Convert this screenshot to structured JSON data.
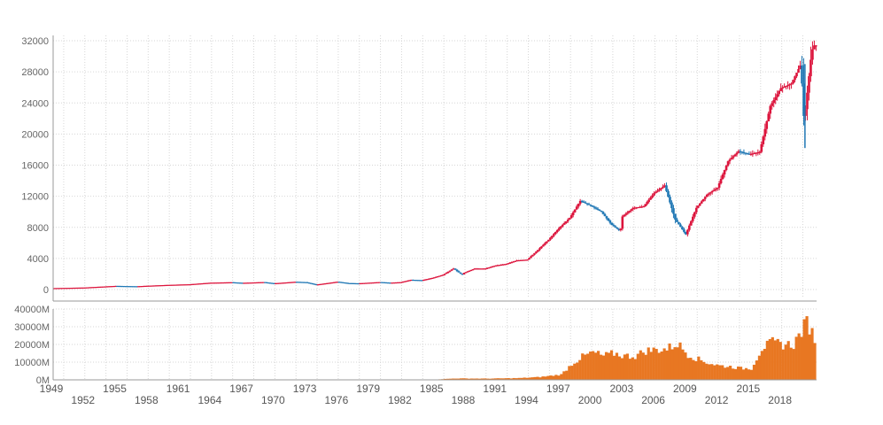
{
  "chart_data": [
    {
      "type": "candlestick",
      "panel": "price",
      "x_unit": "year",
      "y_ticks": [
        "0",
        "4000",
        "8000",
        "12000",
        "16000",
        "20000",
        "24000",
        "28000",
        "32000"
      ],
      "ylim": [
        0,
        32000
      ],
      "grid": true,
      "colors": {
        "up": "#dc143c",
        "down": "#1f77b4"
      },
      "points": [
        [
          1949,
          180
        ],
        [
          1952,
          260
        ],
        [
          1955,
          470
        ],
        [
          1957,
          420
        ],
        [
          1958,
          490
        ],
        [
          1960,
          600
        ],
        [
          1962,
          680
        ],
        [
          1964,
          880
        ],
        [
          1966,
          940
        ],
        [
          1967,
          860
        ],
        [
          1969,
          960
        ],
        [
          1970,
          800
        ],
        [
          1971,
          900
        ],
        [
          1972,
          1000
        ],
        [
          1973,
          950
        ],
        [
          1974,
          640
        ],
        [
          1975,
          820
        ],
        [
          1976,
          1010
        ],
        [
          1977,
          830
        ],
        [
          1978,
          800
        ],
        [
          1980,
          960
        ],
        [
          1981,
          880
        ],
        [
          1982,
          950
        ],
        [
          1983,
          1260
        ],
        [
          1984,
          1200
        ],
        [
          1985,
          1500
        ],
        [
          1986,
          1900
        ],
        [
          1987,
          2700
        ],
        [
          1987.8,
          1900
        ],
        [
          1988,
          2150
        ],
        [
          1989,
          2700
        ],
        [
          1990,
          2700
        ],
        [
          1991,
          3100
        ],
        [
          1992,
          3300
        ],
        [
          1993,
          3750
        ],
        [
          1994,
          3850
        ],
        [
          1995,
          5100
        ],
        [
          1996,
          6400
        ],
        [
          1997,
          7900
        ],
        [
          1998,
          9200
        ],
        [
          1999,
          11400
        ],
        [
          2000,
          10800
        ],
        [
          2001,
          10000
        ],
        [
          2002,
          8300
        ],
        [
          2002.8,
          7500
        ],
        [
          2003,
          9400
        ],
        [
          2004,
          10500
        ],
        [
          2005,
          10700
        ],
        [
          2006,
          12400
        ],
        [
          2007,
          13400
        ],
        [
          2008,
          9000
        ],
        [
          2009,
          7100
        ],
        [
          2010,
          10500
        ],
        [
          2011,
          12200
        ],
        [
          2012,
          13100
        ],
        [
          2013,
          16500
        ],
        [
          2014,
          17800
        ],
        [
          2015,
          17400
        ],
        [
          2016,
          17700
        ],
        [
          2017,
          23600
        ],
        [
          2018,
          25900
        ],
        [
          2019,
          26500
        ],
        [
          2019.9,
          29000
        ],
        [
          2020.2,
          21500
        ],
        [
          2020.9,
          30400
        ],
        [
          2021.1,
          31400
        ]
      ]
    },
    {
      "type": "bar",
      "panel": "volume",
      "x_unit": "year",
      "y_ticks": [
        "0M",
        "10000M",
        "20000M",
        "30000M",
        "40000M"
      ],
      "ylim": [
        0,
        40000
      ],
      "color": "#e87722",
      "values_M": [
        [
          1949,
          100
        ],
        [
          1985,
          200
        ],
        [
          1987,
          800
        ],
        [
          1990,
          700
        ],
        [
          1993,
          1000
        ],
        [
          1995,
          1600
        ],
        [
          1997,
          3000
        ],
        [
          1998,
          9000
        ],
        [
          1999,
          13000
        ],
        [
          2000,
          15500
        ],
        [
          2001,
          13500
        ],
        [
          2002,
          15000
        ],
        [
          2003,
          13500
        ],
        [
          2004,
          13500
        ],
        [
          2005,
          16500
        ],
        [
          2006,
          17000
        ],
        [
          2007,
          17500
        ],
        [
          2008,
          20500
        ],
        [
          2009,
          14500
        ],
        [
          2010,
          11500
        ],
        [
          2011,
          9500
        ],
        [
          2012,
          8000
        ],
        [
          2013,
          7500
        ],
        [
          2014,
          6500
        ],
        [
          2015,
          6500
        ],
        [
          2016,
          18000
        ],
        [
          2017,
          21000
        ],
        [
          2018,
          20000
        ],
        [
          2019,
          20000
        ],
        [
          2020.3,
          33000
        ],
        [
          2021,
          23000
        ]
      ]
    }
  ],
  "x_axis": {
    "row1": [
      "1949",
      "1955",
      "1961",
      "1967",
      "1973",
      "1979",
      "1985",
      "1991",
      "1997",
      "2003",
      "2009",
      "2015"
    ],
    "row2": [
      "1952",
      "1958",
      "1964",
      "1970",
      "1976",
      "1982",
      "1988",
      "1994",
      "2000",
      "2006",
      "2012",
      "2018"
    ]
  }
}
